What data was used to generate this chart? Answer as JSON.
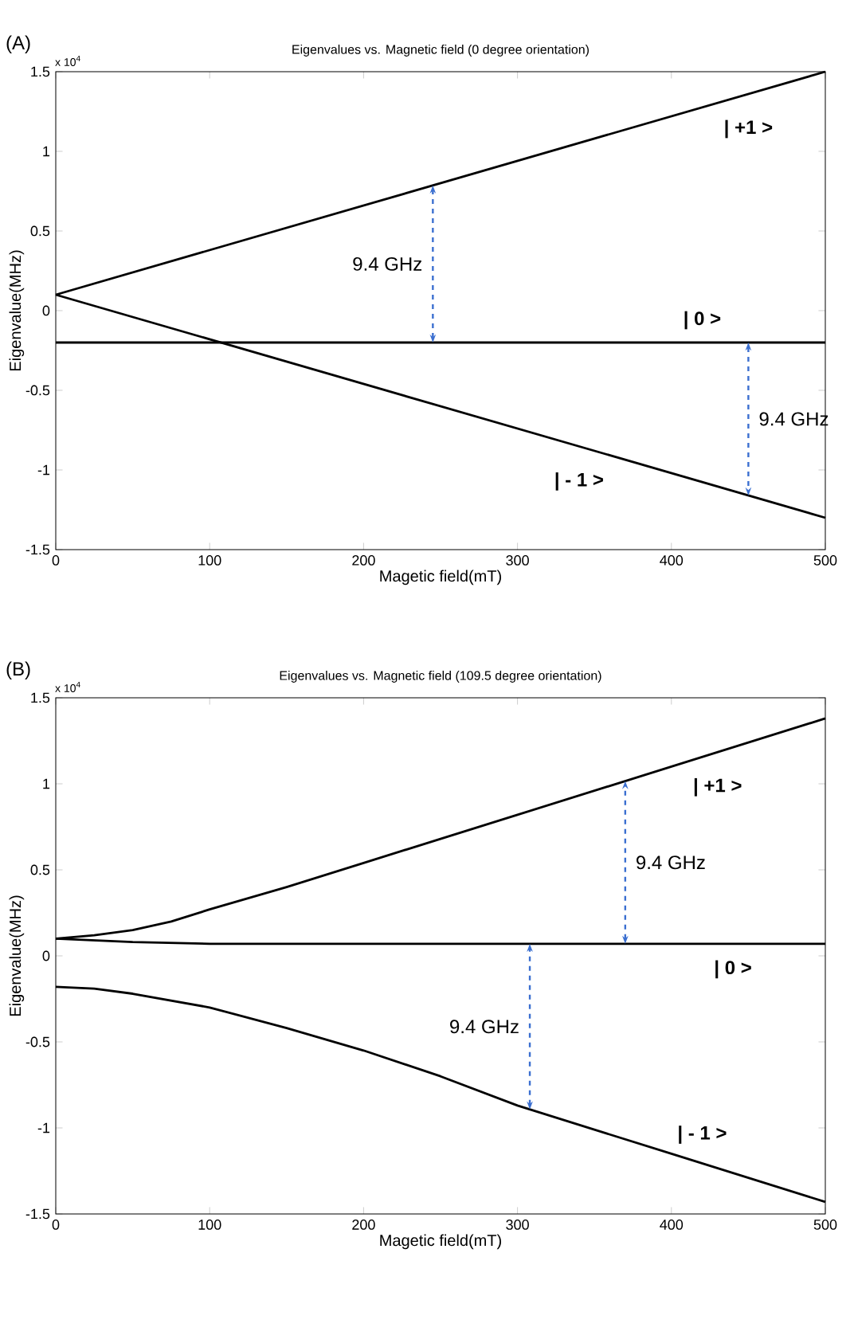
{
  "chart_data": [
    {
      "type": "line",
      "title": "Eigenvalues vs. Magnetic field (0 degree orientation)",
      "xlabel": "Magetic field(mT)",
      "ylabel": "Eigenvalue(MHz)",
      "xlim": [
        0,
        500
      ],
      "ylim": [
        -1.5,
        1.5
      ],
      "xticks": [
        0,
        100,
        200,
        300,
        400,
        500
      ],
      "yticks": [
        -1.5,
        -1,
        -0.5,
        0,
        0.5,
        1,
        1.5
      ],
      "annotations": [
        "(A)",
        "x 10$^{4}$",
        "9.4 GHz",
        "9.4 GHz"
      ],
      "series": [
        {
          "name": "| +1 >",
          "color": "#000000",
          "x": [
            0,
            500
          ],
          "values": [
            0.1,
            1.5
          ]
        },
        {
          "name": "| 0 >",
          "color": "#000000",
          "x": [
            0,
            500
          ],
          "values": [
            -0.2,
            -0.2
          ]
        },
        {
          "name": "| - 1 >",
          "color": "#000000",
          "x": [
            0,
            500
          ],
          "values": [
            0.1,
            -1.3
          ]
        }
      ]
    },
    {
      "type": "line",
      "title": "Eigenvalues vs. Magnetic field (109.5 degree orientation)",
      "xlabel": "Magetic field(mT)",
      "ylabel": "Eigenvalue(MHz)",
      "xlim": [
        0,
        500
      ],
      "ylim": [
        -1.5,
        1.5
      ],
      "xticks": [
        0,
        100,
        200,
        300,
        400,
        500
      ],
      "yticks": [
        -1.5,
        -1,
        -0.5,
        0,
        0.5,
        1,
        1.5
      ],
      "annotations": [
        "(B)",
        "x 10$^{4}$",
        "9.4 GHz",
        "9.4 GHz"
      ],
      "series": [
        {
          "name": "| +1 >",
          "color": "#000000",
          "x": [
            0,
            25,
            50,
            75,
            100,
            150,
            200,
            250,
            300,
            400,
            500
          ],
          "values": [
            0.1,
            0.12,
            0.15,
            0.2,
            0.27,
            0.4,
            0.54,
            0.68,
            0.82,
            1.1,
            1.38
          ]
        },
        {
          "name": "| 0 >",
          "color": "#000000",
          "x": [
            0,
            50,
            100,
            500
          ],
          "values": [
            0.1,
            0.08,
            0.07,
            0.07
          ]
        },
        {
          "name": "| - 1 >",
          "color": "#000000",
          "x": [
            0,
            25,
            50,
            100,
            150,
            200,
            250,
            300,
            400,
            500
          ],
          "values": [
            -0.18,
            -0.19,
            -0.22,
            -0.3,
            -0.42,
            -0.55,
            -0.7,
            -0.87,
            -1.15,
            -1.43
          ]
        }
      ]
    }
  ]
}
